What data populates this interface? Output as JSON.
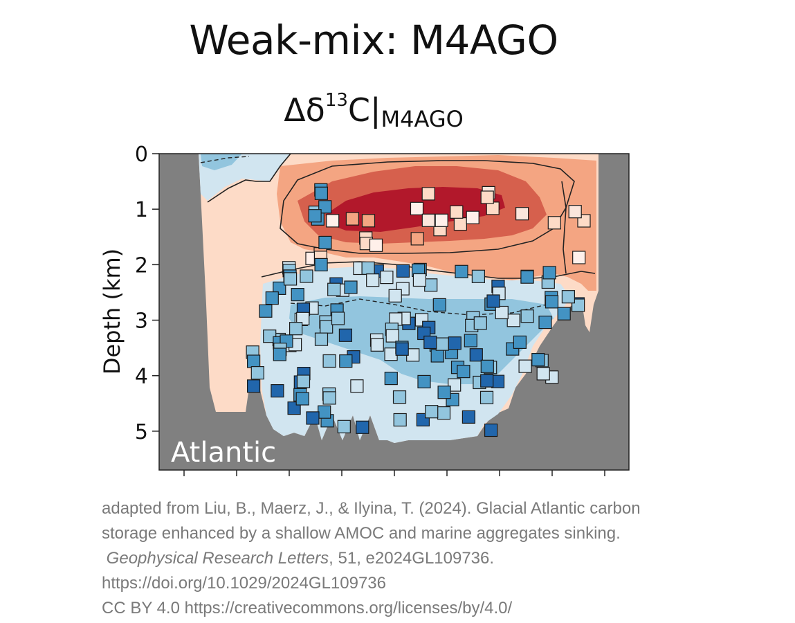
{
  "title": "Weak-mix: M4AGO",
  "subtitle": {
    "prefix": "Δδ",
    "sup": "13",
    "base": "C|",
    "sub": "M4AGO"
  },
  "chart_data": {
    "type": "heatmap",
    "ylabel": "Depth (km)",
    "xlabel": "",
    "ylim": [
      5.7,
      0
    ],
    "yticks": [
      0,
      1,
      2,
      3,
      4,
      5
    ],
    "yticklabels": [
      "0",
      "1",
      "2",
      "3",
      "4",
      "5"
    ],
    "xticks_count": 9,
    "panel_label": "Atlantic",
    "background_color": "#808080",
    "colors": {
      "dark_red": "#b2182b",
      "red": "#d6604d",
      "light_red": "#f4a582",
      "pale_red": "#fddbc7",
      "pale_blue": "#d1e5f0",
      "light_blue": "#92c5de",
      "blue": "#4393c3",
      "dark_blue": "#2166ac"
    },
    "observation_markers": "squares colored by observed value on same diverging scale"
  },
  "credit": {
    "line1": "adapted from Liu, B., Maerz, J., & Ilyina, T. (2024). Glacial Atlantic carbon",
    "line2": "storage enhanced by a shallow AMOC and marine aggregates sinking.",
    "journal": "Geophysical Research Letters",
    "line3_rest": ", 51, e2024GL109736.",
    "line4": "https://doi.org/10.1029/2024GL109736",
    "line5": "CC BY 4.0 https://creativecommons.org/licenses/by/4.0/"
  }
}
